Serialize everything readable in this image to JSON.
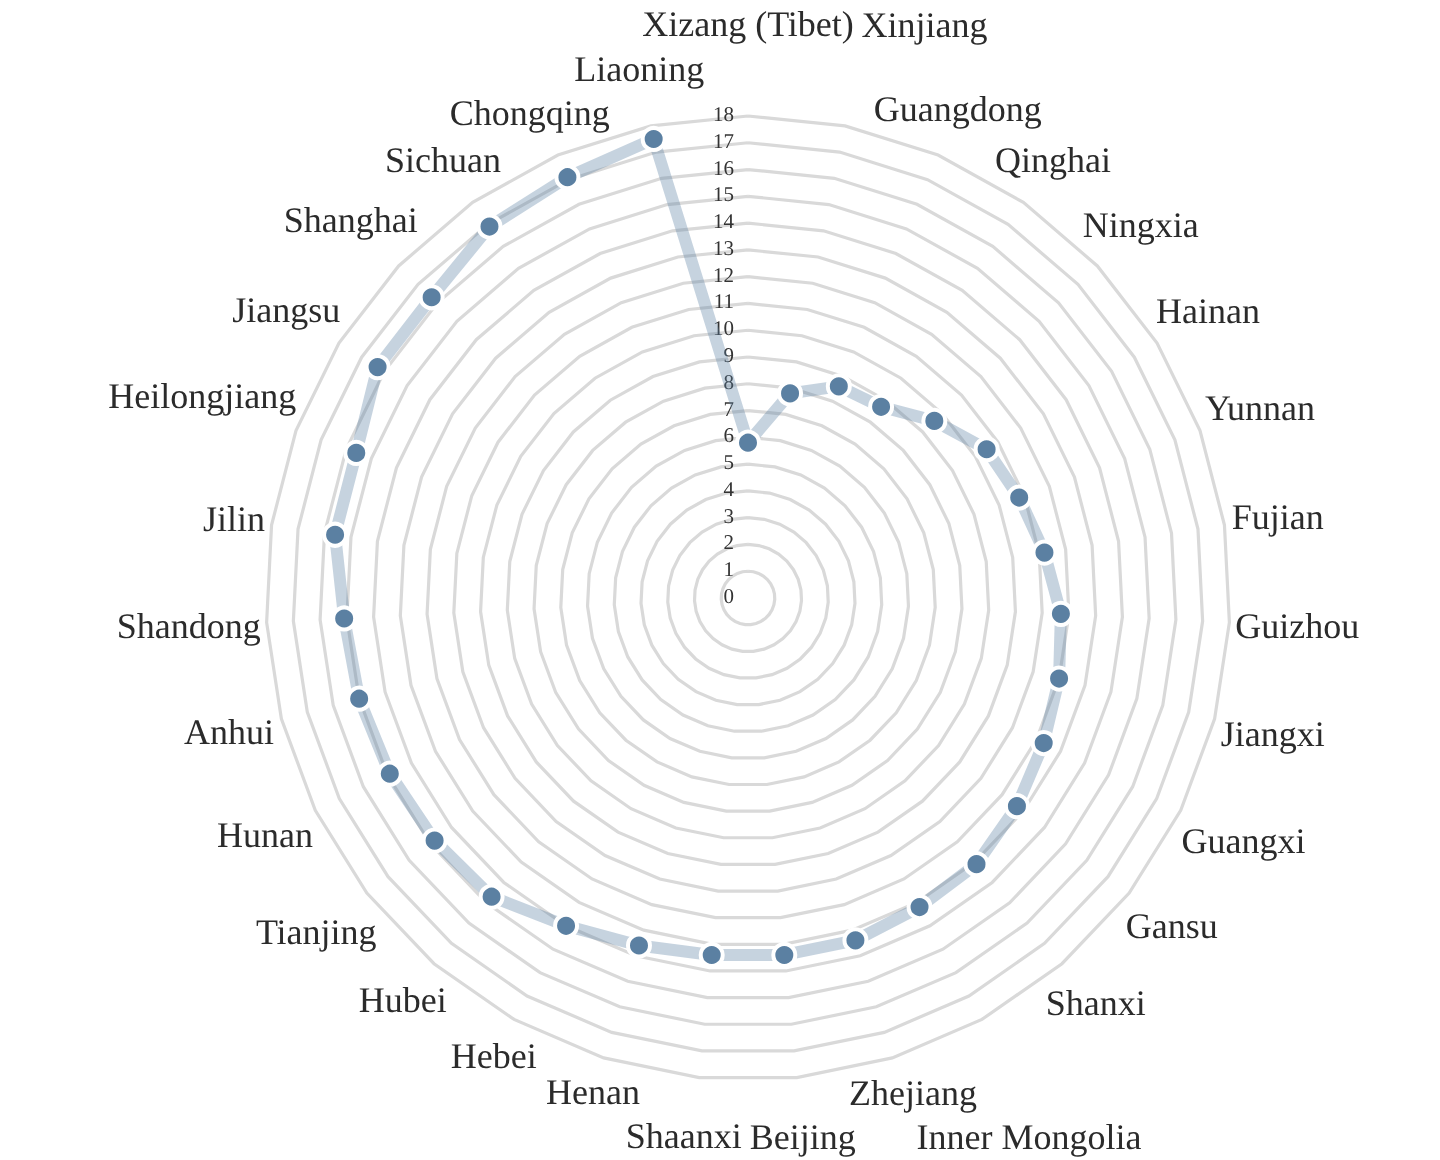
{
  "chart_data": {
    "type": "radar",
    "categories": [
      "Xizang (Tibet)",
      "Xinjiang",
      "Guangdong",
      "Qinghai",
      "Ningxia",
      "Hainan",
      "Yunnan",
      "Fujian",
      "Guizhou",
      "Jiangxi",
      "Guangxi",
      "Gansu",
      "Shanxi",
      "Inner Mongolia",
      "Zhejiang",
      "Beijing",
      "Shaanxi",
      "Henan",
      "Hebei",
      "Hubei",
      "Tianjing",
      "Hunan",
      "Anhui",
      "Shandong",
      "Jilin",
      "Heilongjiang",
      "Jiangsu",
      "Shanghai",
      "Sichuan",
      "Chongqing",
      "Liaoning"
    ],
    "values": [
      5.8,
      7.8,
      8.6,
      8.7,
      9.6,
      10.5,
      10.8,
      11.2,
      11.7,
      12.0,
      12.3,
      12.7,
      13.1,
      13.2,
      13.4,
      13.4,
      13.4,
      13.6,
      14.0,
      14.7,
      14.8,
      14.9,
      15.0,
      15.1,
      15.6,
      15.6,
      16.3,
      16.3,
      16.9,
      17.1,
      17.5
    ],
    "color": "#5b80a2",
    "ylim": [
      0,
      18
    ],
    "yticks": [
      0,
      1,
      2,
      3,
      4,
      5,
      6,
      7,
      8,
      9,
      10,
      11,
      12,
      13,
      14,
      15,
      16,
      17,
      18
    ],
    "grid": true,
    "marker": "circle",
    "line_style": "solid"
  }
}
